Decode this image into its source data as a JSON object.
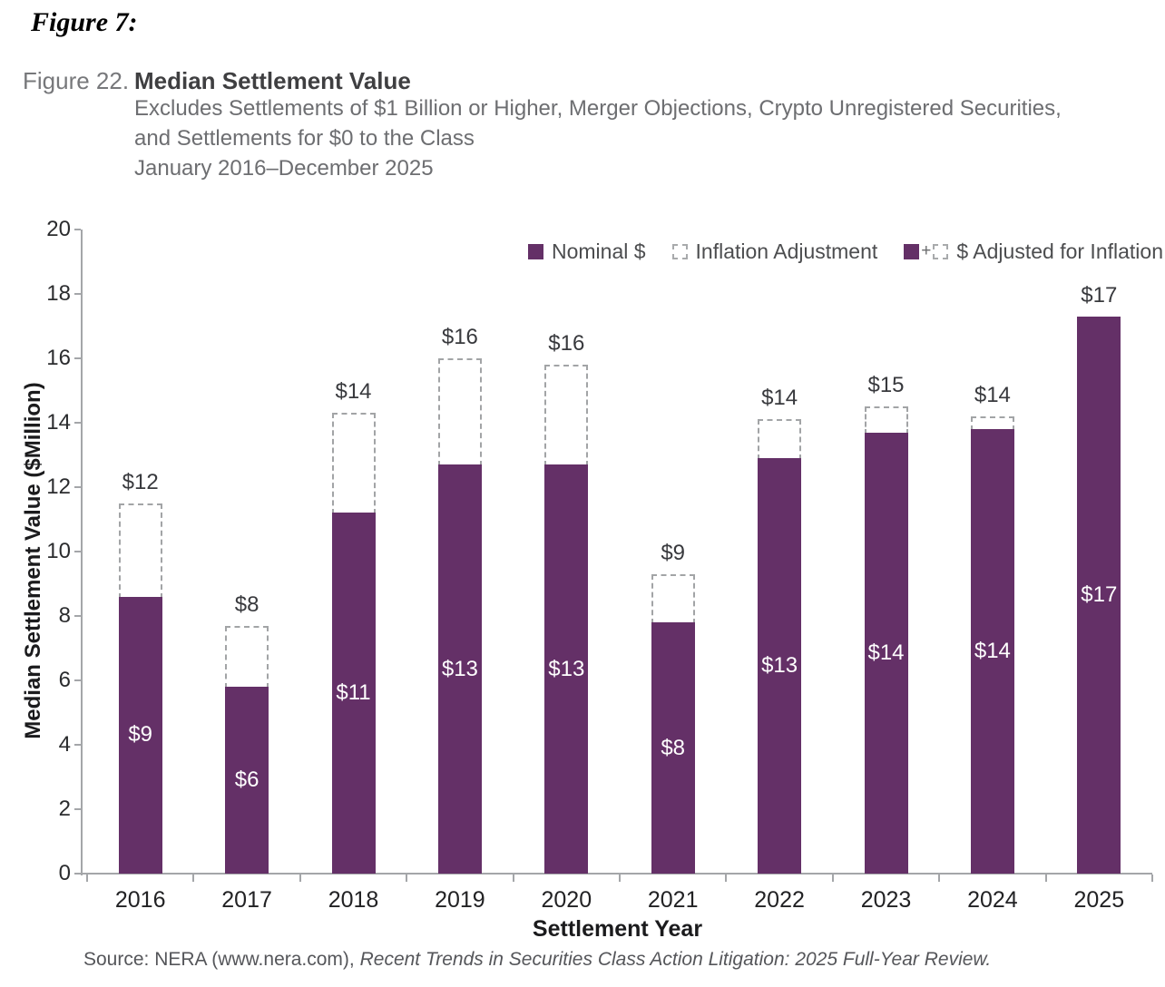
{
  "header": {
    "figure_tag": "Figure 7:",
    "figure_label": "Figure 22.",
    "title": "Median Settlement Value",
    "subtitle_lines": [
      "Excludes Settlements of $1 Billion or Higher, Merger Objections, Crypto Unregistered Securities,",
      "and Settlements for $0 to the Class",
      "January 2016–December 2025"
    ]
  },
  "footer": {
    "source_prefix": "Source: NERA (www.nera.com), ",
    "source_italic": "Recent Trends in Securities Class Action Litigation: 2025 Full-Year Review."
  },
  "chart_data": {
    "type": "bar",
    "stacked": true,
    "title": "Median Settlement Value",
    "xlabel": "Settlement Year",
    "ylabel": "Median Settlement Value ($Million)",
    "ylim": [
      0,
      20
    ],
    "yticks": [
      0,
      2,
      4,
      6,
      8,
      10,
      12,
      14,
      16,
      18,
      20
    ],
    "grid": false,
    "legend_position": "top-right",
    "categories": [
      "2016",
      "2017",
      "2018",
      "2019",
      "2020",
      "2021",
      "2022",
      "2023",
      "2024",
      "2025"
    ],
    "series": [
      {
        "name": "Nominal $",
        "values": [
          8.6,
          5.8,
          11.2,
          12.7,
          12.7,
          7.8,
          12.9,
          13.7,
          13.8,
          17.3
        ],
        "data_labels": [
          "$9",
          "$6",
          "$11",
          "$13",
          "$13",
          "$8",
          "$13",
          "$14",
          "$14",
          "$17"
        ]
      },
      {
        "name": "$ Adjusted for Inflation",
        "values": [
          11.5,
          7.7,
          14.3,
          16.0,
          15.8,
          9.3,
          14.1,
          14.5,
          14.2,
          17.3
        ],
        "data_labels": [
          "$12",
          "$8",
          "$14",
          "$16",
          "$16",
          "$9",
          "$14",
          "$15",
          "$14",
          "$17"
        ]
      }
    ],
    "legend": [
      {
        "swatch": "solid",
        "label": "Nominal $"
      },
      {
        "swatch": "dashed",
        "label": "Inflation Adjustment"
      },
      {
        "swatch": "combo",
        "plus": "+",
        "label": "$ Adjusted for Inflation"
      }
    ],
    "colors": {
      "bar": "#643067",
      "dashed_border": "#a2a4a6",
      "axis": "#a4a6a9",
      "inside_label": "#ffffff",
      "outside_label": "#38393d"
    }
  }
}
